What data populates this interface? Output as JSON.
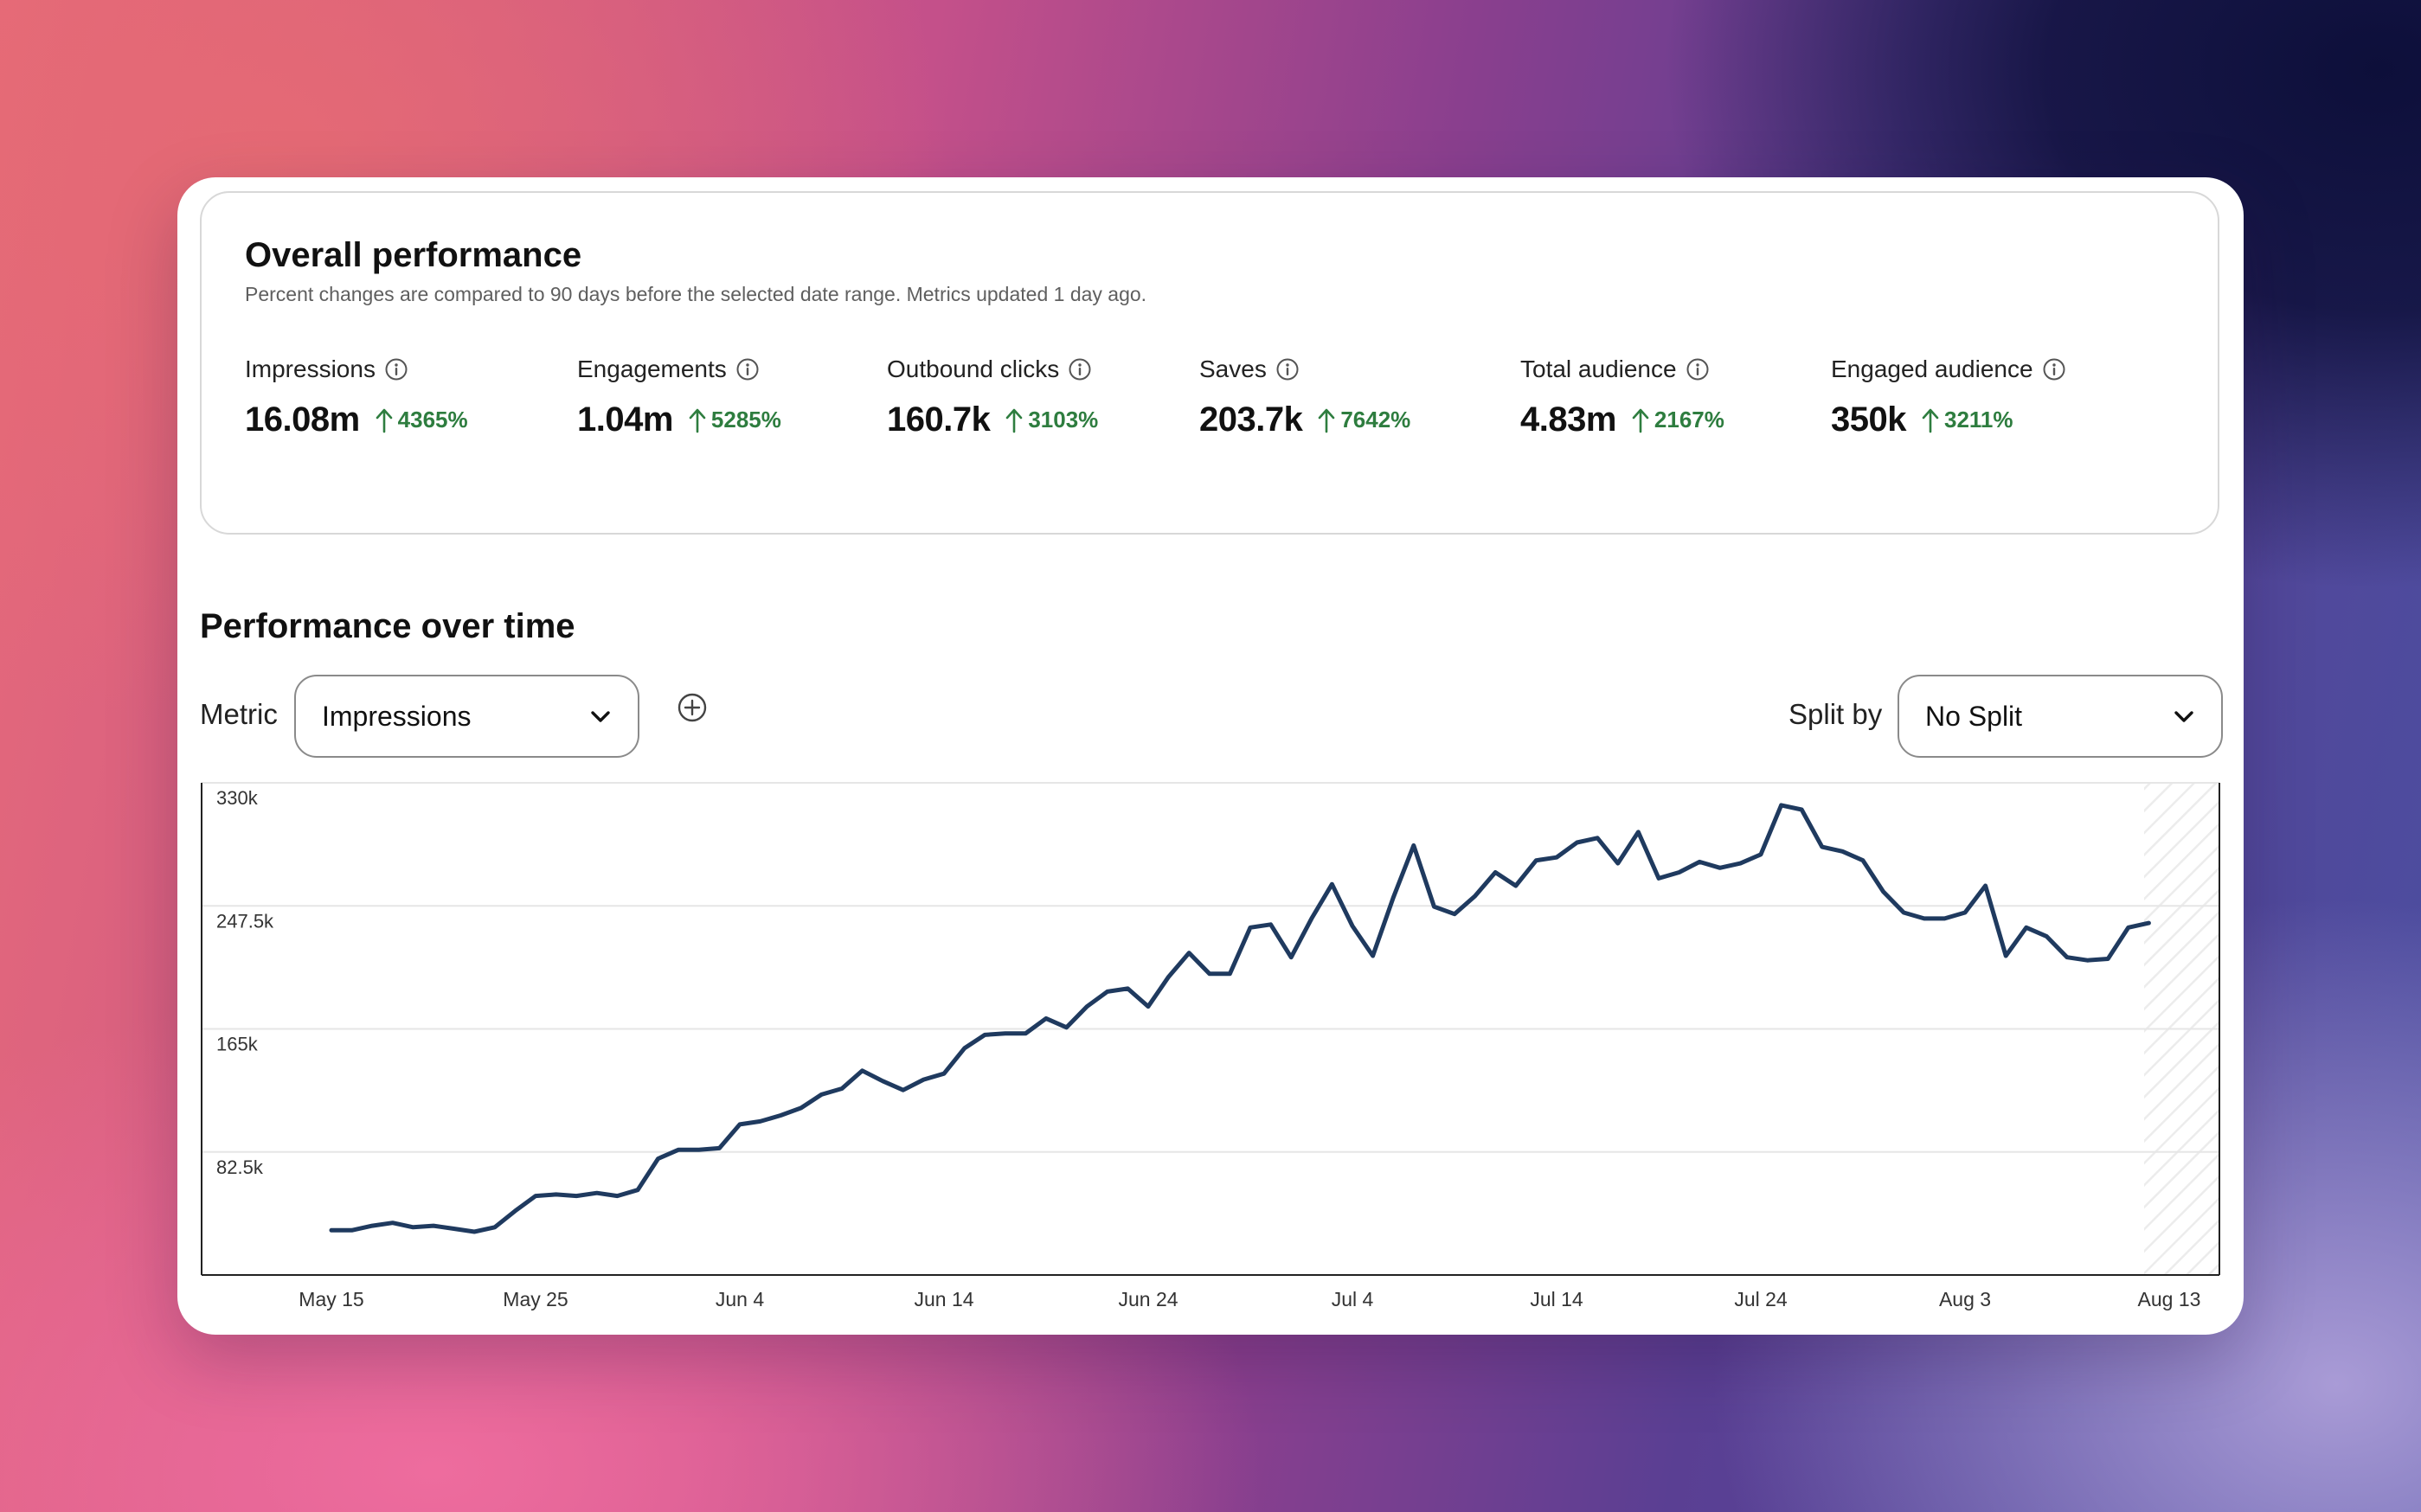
{
  "overall": {
    "title": "Overall performance",
    "subtitle": "Percent changes are compared to 90 days before the selected date range. Metrics updated 1 day ago.",
    "metrics": [
      {
        "label": "Impressions",
        "value": "16.08m",
        "change": "4365%"
      },
      {
        "label": "Engagements",
        "value": "1.04m",
        "change": "5285%"
      },
      {
        "label": "Outbound clicks",
        "value": "160.7k",
        "change": "3103%"
      },
      {
        "label": "Saves",
        "value": "203.7k",
        "change": "7642%"
      },
      {
        "label": "Total audience",
        "value": "4.83m",
        "change": "2167%"
      },
      {
        "label": "Engaged audience",
        "value": "350k",
        "change": "3211%"
      }
    ]
  },
  "performance": {
    "title": "Performance over time",
    "metric_label": "Metric",
    "metric_value": "Impressions",
    "split_label": "Split by",
    "split_value": "No Split"
  },
  "colors": {
    "line": "#1f3a5f",
    "positive": "#2e7d3f",
    "grid": "#e6e6e6"
  },
  "icons": [
    "info-icon",
    "up-arrow-icon",
    "chevron-down-icon",
    "plus-circle-icon"
  ],
  "chart_data": {
    "type": "line",
    "title": "",
    "xlabel": "",
    "ylabel": "",
    "ylim": [
      0,
      330000
    ],
    "yticks": [
      {
        "label": "330k",
        "value": 330000
      },
      {
        "label": "247.5k",
        "value": 247500
      },
      {
        "label": "165k",
        "value": 165000
      },
      {
        "label": "82.5k",
        "value": 82500
      }
    ],
    "xticks": [
      "May 15",
      "May 25",
      "Jun 4",
      "Jun 14",
      "Jun 24",
      "Jul 4",
      "Jul 14",
      "Jul 24",
      "Aug 3",
      "Aug 13"
    ],
    "grid": true,
    "series": [
      {
        "values": [
          30000,
          30000,
          33000,
          35000,
          32000,
          33000,
          31000,
          29000,
          32000,
          43000,
          53000,
          54000,
          53000,
          55000,
          53000,
          57000,
          78000,
          84000,
          84000,
          85000,
          101000,
          103000,
          107000,
          112000,
          121000,
          125000,
          137000,
          130000,
          124000,
          131000,
          135000,
          152000,
          161000,
          162000,
          162000,
          172000,
          166000,
          180000,
          190000,
          192000,
          180000,
          200000,
          216000,
          202000,
          202000,
          233000,
          235000,
          213000,
          239000,
          262000,
          234000,
          214000,
          253000,
          288000,
          247000,
          242000,
          254000,
          270000,
          261000,
          278000,
          280000,
          290000,
          293000,
          276000,
          297000,
          266000,
          270000,
          277000,
          273000,
          276000,
          282000,
          315000,
          312000,
          287000,
          284000,
          278000,
          257000,
          243000,
          239000,
          239000,
          243000,
          261000,
          214000,
          233000,
          227000,
          213000,
          211000,
          212000,
          233000,
          236000
        ]
      }
    ]
  }
}
